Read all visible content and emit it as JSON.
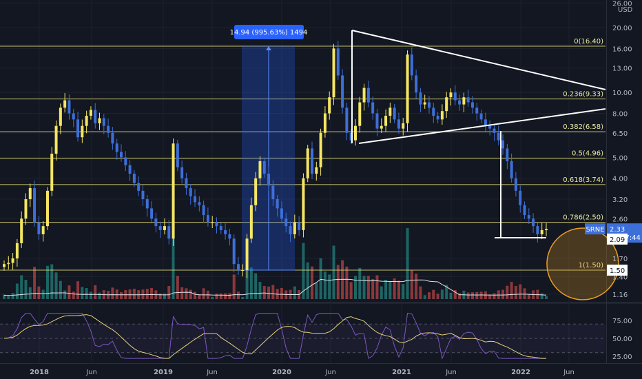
{
  "chart_data": [
    {
      "type": "candlestick",
      "symbol": "SRNE",
      "currency": "USD",
      "price_scale": "log",
      "y_ticks": [
        "26.00",
        "20.00",
        "16.00",
        "13.00",
        "10.00",
        "8.00",
        "6.50",
        "5.00",
        "4.00",
        "3.20",
        "2.60",
        "1.70",
        "1.40",
        "1.16"
      ],
      "x_ticks": [
        "2018",
        "Jun",
        "2019",
        "Jun",
        "2020",
        "Jun",
        "2021",
        "Jun",
        "2022",
        "Jun"
      ],
      "fib_levels": [
        {
          "label": "0(16.40)",
          "price": 16.4
        },
        {
          "label": "0.236(9.33)",
          "price": 9.33
        },
        {
          "label": "0.382(6.58)",
          "price": 6.58
        },
        {
          "label": "0.5(4.96)",
          "price": 4.96
        },
        {
          "label": "0.618(3.74)",
          "price": 3.74
        },
        {
          "label": "0.786(2.50)",
          "price": 2.5
        },
        {
          "label": "1(1.50)",
          "price": 1.5
        }
      ],
      "measure_label": "14.94 (995.63%) 1494",
      "last_price": "2.33",
      "countdown": "06:37:44",
      "price_tags": [
        "2.09",
        "1.50"
      ],
      "closes": [
        1.6,
        1.62,
        1.7,
        2.0,
        2.6,
        3.2,
        3.6,
        2.5,
        2.2,
        2.4,
        3.5,
        5.2,
        7.0,
        8.5,
        9.2,
        8.0,
        7.5,
        6.2,
        7.0,
        7.8,
        8.3,
        7.2,
        7.6,
        7.0,
        6.5,
        5.8,
        5.3,
        5.0,
        4.6,
        4.2,
        3.8,
        3.5,
        3.2,
        2.9,
        2.6,
        2.4,
        2.3,
        2.4,
        2.1,
        5.8,
        4.5,
        4.0,
        3.6,
        3.3,
        3.1,
        3.0,
        2.7,
        2.5,
        2.5,
        2.4,
        2.3,
        2.2,
        2.1,
        1.6,
        1.5,
        1.5,
        2.1,
        3.0,
        4.0,
        4.8,
        4.2,
        3.7,
        3.2,
        2.9,
        2.6,
        2.4,
        2.2,
        2.5,
        2.3,
        4.0,
        5.5,
        4.2,
        4.5,
        6.5,
        8.0,
        9.5,
        16.0,
        12.0,
        8.5,
        6.5,
        6.0,
        7.0,
        9.0,
        10.5,
        9.0,
        8.0,
        6.8,
        7.0,
        7.8,
        8.5,
        7.5,
        6.8,
        7.2,
        15.0,
        12.0,
        10.0,
        8.8,
        9.0,
        8.5,
        7.8,
        7.5,
        8.2,
        9.5,
        10.0,
        9.2,
        8.8,
        9.5,
        9.0,
        8.5,
        8.0,
        7.5,
        7.0,
        6.8,
        6.5,
        6.0,
        5.5,
        4.8,
        4.0,
        3.5,
        3.0,
        2.7,
        2.6,
        2.4,
        2.2,
        2.3,
        2.33
      ],
      "rsi_ticks": [
        "75.00",
        "50.00",
        "25.00"
      ]
    }
  ]
}
